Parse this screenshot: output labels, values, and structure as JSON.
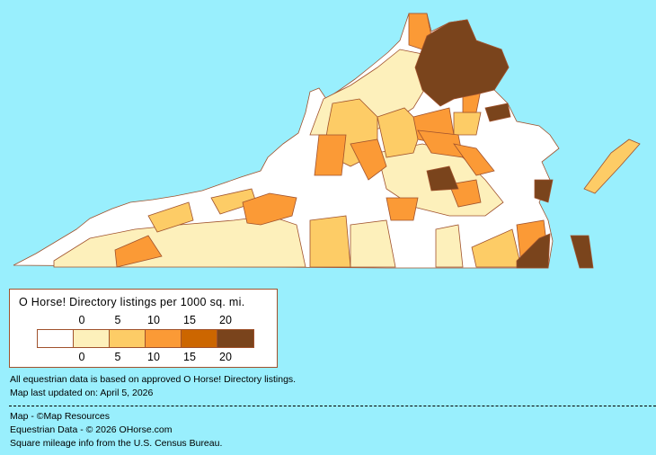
{
  "legend": {
    "title": "O Horse! Directory listings per 1000 sq. mi.",
    "ticks_top": [
      "0",
      "5",
      "10",
      "15",
      "20"
    ],
    "ticks_bottom": [
      "0",
      "5",
      "10",
      "15",
      "20"
    ],
    "bins": [
      {
        "range": "0",
        "color": "#ffffff"
      },
      {
        "range": "0-5",
        "color": "#fdf0bb"
      },
      {
        "range": "5-10",
        "color": "#fdcc66"
      },
      {
        "range": "10-15",
        "color": "#fb9a36"
      },
      {
        "range": "15-20",
        "color": "#cc6600"
      },
      {
        "range": "20+",
        "color": "#7a441c"
      }
    ]
  },
  "notes": {
    "data_basis": "All equestrian data is based on approved O Horse! Directory listings.",
    "updated": "Map last updated on: April 5, 2026"
  },
  "credits": {
    "map": "Map - ©Map Resources",
    "data": "Equestrian Data - © 2026 OHorse.com",
    "census": "Square mileage info from the U.S. Census Bureau."
  },
  "map": {
    "region": "Virginia",
    "background": "#99effd",
    "border_color": "#a0522d"
  }
}
